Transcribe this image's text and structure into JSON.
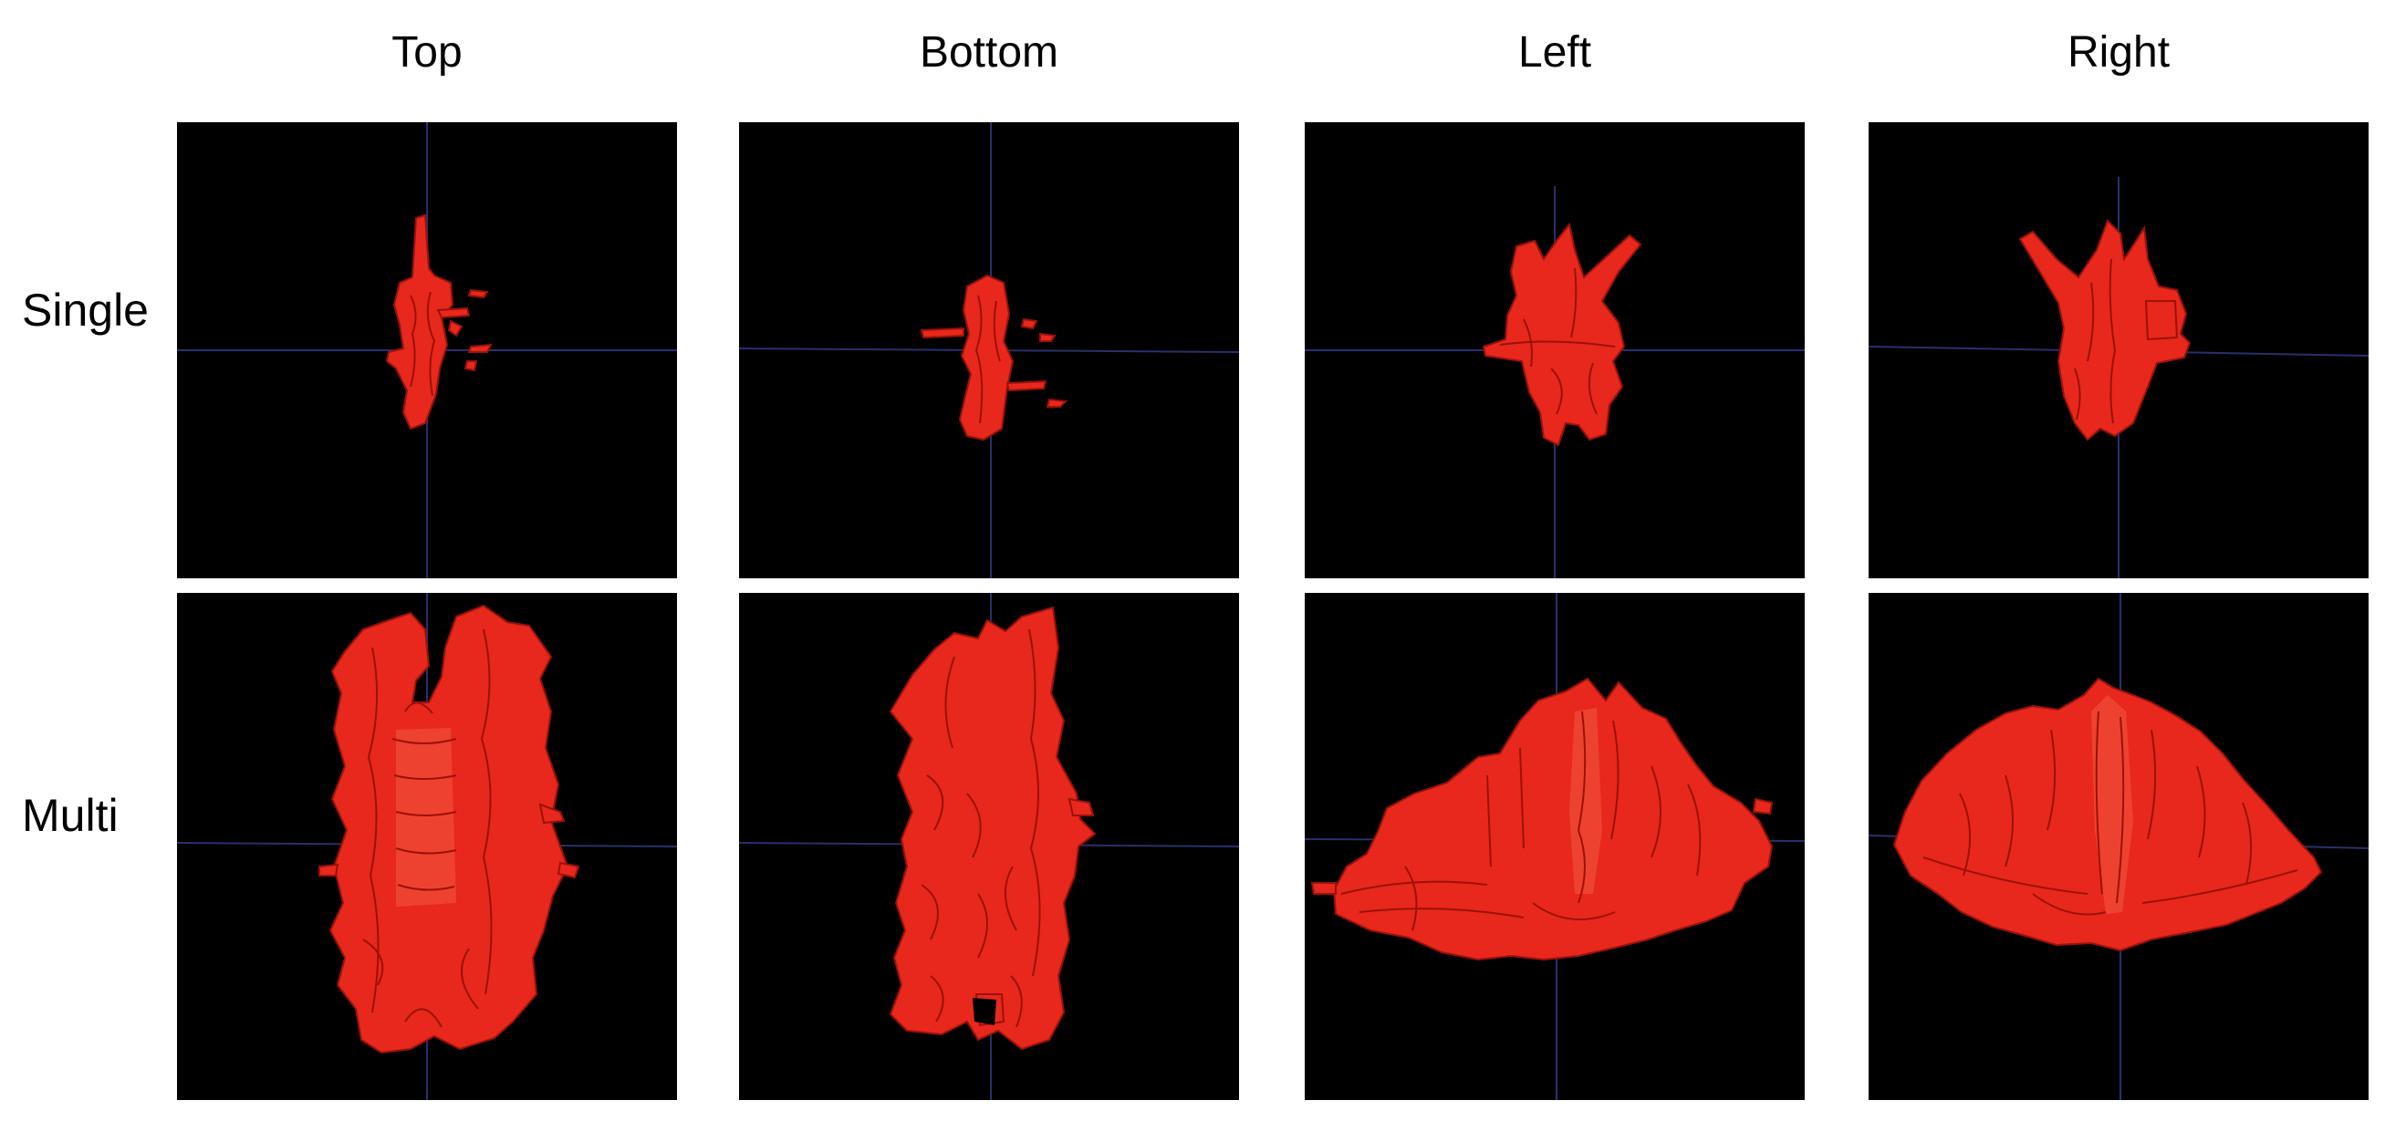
{
  "columns": [
    {
      "key": "top",
      "label": "Top"
    },
    {
      "key": "bottom",
      "label": "Bottom"
    },
    {
      "key": "left",
      "label": "Left"
    },
    {
      "key": "right",
      "label": "Right"
    }
  ],
  "rows": [
    {
      "key": "single",
      "label": "Single"
    },
    {
      "key": "multi",
      "label": "Multi"
    }
  ],
  "colors": {
    "background": "#000000",
    "structure": "#e8281c",
    "structure_dark": "#9c1108",
    "structure_highlight": "#ff5a44",
    "crosshair": "#2a2f6e"
  }
}
